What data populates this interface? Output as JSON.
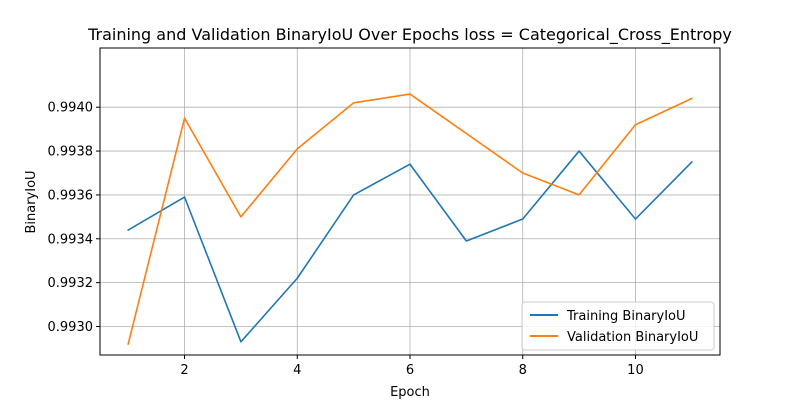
{
  "chart_data": {
    "type": "line",
    "title": "Training and Validation BinaryIoU Over Epochs loss = Categorical_Cross_Entropy",
    "xlabel": "Epoch",
    "ylabel": "BinaryIoU",
    "xlim": [
      0.5,
      11.5
    ],
    "ylim": [
      0.99287,
      0.99427
    ],
    "xticks": [
      2,
      4,
      6,
      8,
      10
    ],
    "xtick_labels": [
      "2",
      "4",
      "6",
      "8",
      "10"
    ],
    "yticks": [
      0.993,
      0.9932,
      0.9934,
      0.9936,
      0.9938,
      0.994
    ],
    "ytick_labels": [
      "0.9930",
      "0.9932",
      "0.9934",
      "0.9936",
      "0.9938",
      "0.9940"
    ],
    "grid": true,
    "legend_position": "bottom-right",
    "x": [
      1,
      2,
      3,
      4,
      5,
      6,
      7,
      8,
      9,
      10,
      11
    ],
    "series": [
      {
        "name": "Training BinaryIoU",
        "color": "#1f77b4",
        "values": [
          0.99344,
          0.99359,
          0.99293,
          0.99322,
          0.9936,
          0.99374,
          0.99339,
          0.99349,
          0.9938,
          0.99349,
          0.99375
        ]
      },
      {
        "name": "Validation BinaryIoU",
        "color": "#ff7f0e",
        "values": [
          0.99292,
          0.99395,
          0.9935,
          0.99381,
          0.99402,
          0.99406,
          0.99388,
          0.9937,
          0.9936,
          0.99392,
          0.99404
        ]
      }
    ]
  }
}
